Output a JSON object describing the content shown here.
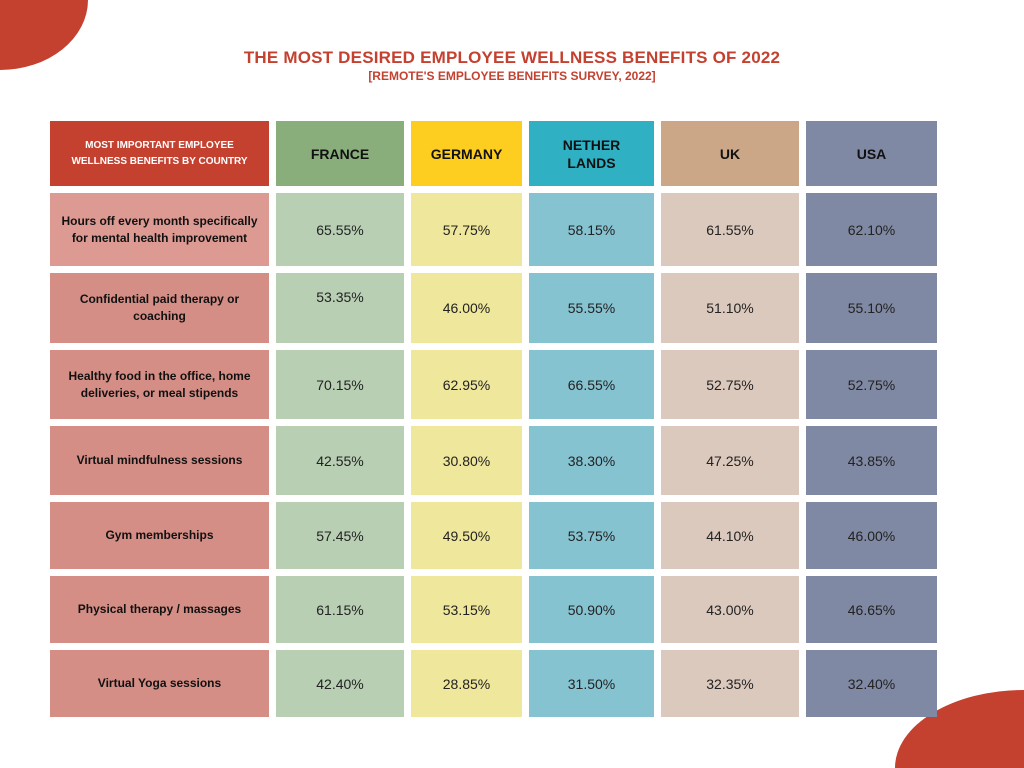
{
  "title": "THE MOST DESIRED EMPLOYEE WELLNESS BENEFITS OF 2022",
  "subtitle": "[REMOTE'S EMPLOYEE BENEFITS SURVEY, 2022]",
  "chart_data": {
    "type": "table",
    "corner_header": "MOST IMPORTANT EMPLOYEE WELLNESS BENEFITS BY COUNTRY",
    "columns": [
      "FRANCE",
      "GERMANY",
      "NETHER LANDS",
      "UK",
      "USA"
    ],
    "rows": [
      {
        "label": "Hours off every month specifically for mental health improvement",
        "values": [
          "65.55%",
          "57.75%",
          "58.15%",
          "61.55%",
          "62.10%"
        ]
      },
      {
        "label": "Confidential paid therapy or coaching",
        "values": [
          "53.35%",
          "46.00%",
          "55.55%",
          "51.10%",
          "55.10%"
        ]
      },
      {
        "label": "Healthy food in the office, home deliveries, or meal stipends",
        "values": [
          "70.15%",
          "62.95%",
          "66.55%",
          "52.75%",
          "52.75%"
        ]
      },
      {
        "label": "Virtual mindfulness sessions",
        "values": [
          "42.55%",
          "30.80%",
          "38.30%",
          "47.25%",
          "43.85%"
        ]
      },
      {
        "label": "Gym memberships",
        "values": [
          "57.45%",
          "49.50%",
          "53.75%",
          "44.10%",
          "46.00%"
        ]
      },
      {
        "label": "Physical therapy / massages",
        "values": [
          "61.15%",
          "53.15%",
          "50.90%",
          "43.00%",
          "46.65%"
        ]
      },
      {
        "label": "Virtual Yoga sessions",
        "values": [
          "42.40%",
          "28.85%",
          "31.50%",
          "32.35%",
          "32.40%"
        ]
      }
    ],
    "colors": {
      "accent": "#c44130",
      "header": [
        "#89ae7b",
        "#fdcd20",
        "#2fb0c3",
        "#cba788",
        "#8089a3"
      ],
      "cells": [
        "#b8cfb4",
        "#efe79b",
        "#86c3d1",
        "#dcc9bd",
        "#8089a3"
      ],
      "label_first": "#dc9a93",
      "label": "#d48e86"
    }
  }
}
